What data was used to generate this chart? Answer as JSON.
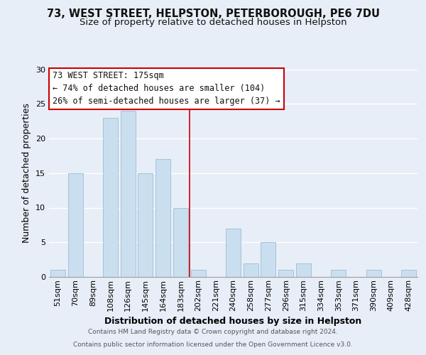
{
  "title_line1": "73, WEST STREET, HELPSTON, PETERBOROUGH, PE6 7DU",
  "title_line2": "Size of property relative to detached houses in Helpston",
  "xlabel": "Distribution of detached houses by size in Helpston",
  "ylabel": "Number of detached properties",
  "bar_labels": [
    "51sqm",
    "70sqm",
    "89sqm",
    "108sqm",
    "126sqm",
    "145sqm",
    "164sqm",
    "183sqm",
    "202sqm",
    "221sqm",
    "240sqm",
    "258sqm",
    "277sqm",
    "296sqm",
    "315sqm",
    "334sqm",
    "353sqm",
    "371sqm",
    "390sqm",
    "409sqm",
    "428sqm"
  ],
  "bar_values": [
    1,
    15,
    0,
    23,
    24,
    15,
    17,
    10,
    1,
    0,
    7,
    2,
    5,
    1,
    2,
    0,
    1,
    0,
    1,
    0,
    1
  ],
  "bar_color": "#c9dff0",
  "bar_edge_color": "#9bbdd4",
  "ylim": [
    0,
    30
  ],
  "yticks": [
    0,
    5,
    10,
    15,
    20,
    25,
    30
  ],
  "annotation_title": "73 WEST STREET: 175sqm",
  "annotation_line1": "← 74% of detached houses are smaller (104)",
  "annotation_line2": "26% of semi-detached houses are larger (37) →",
  "annotation_box_color": "#ffffff",
  "annotation_box_edge": "#cc0000",
  "vline_x": 7.5,
  "vline_color": "#cc0000",
  "footer_line1": "Contains HM Land Registry data © Crown copyright and database right 2024.",
  "footer_line2": "Contains public sector information licensed under the Open Government Licence v3.0.",
  "background_color": "#e8eef7",
  "plot_background": "#e8eef7",
  "grid_color": "#ffffff",
  "title_fontsize": 10.5,
  "subtitle_fontsize": 9.5,
  "axis_label_fontsize": 9,
  "tick_fontsize": 8,
  "annotation_fontsize": 8.5,
  "footer_fontsize": 6.5
}
